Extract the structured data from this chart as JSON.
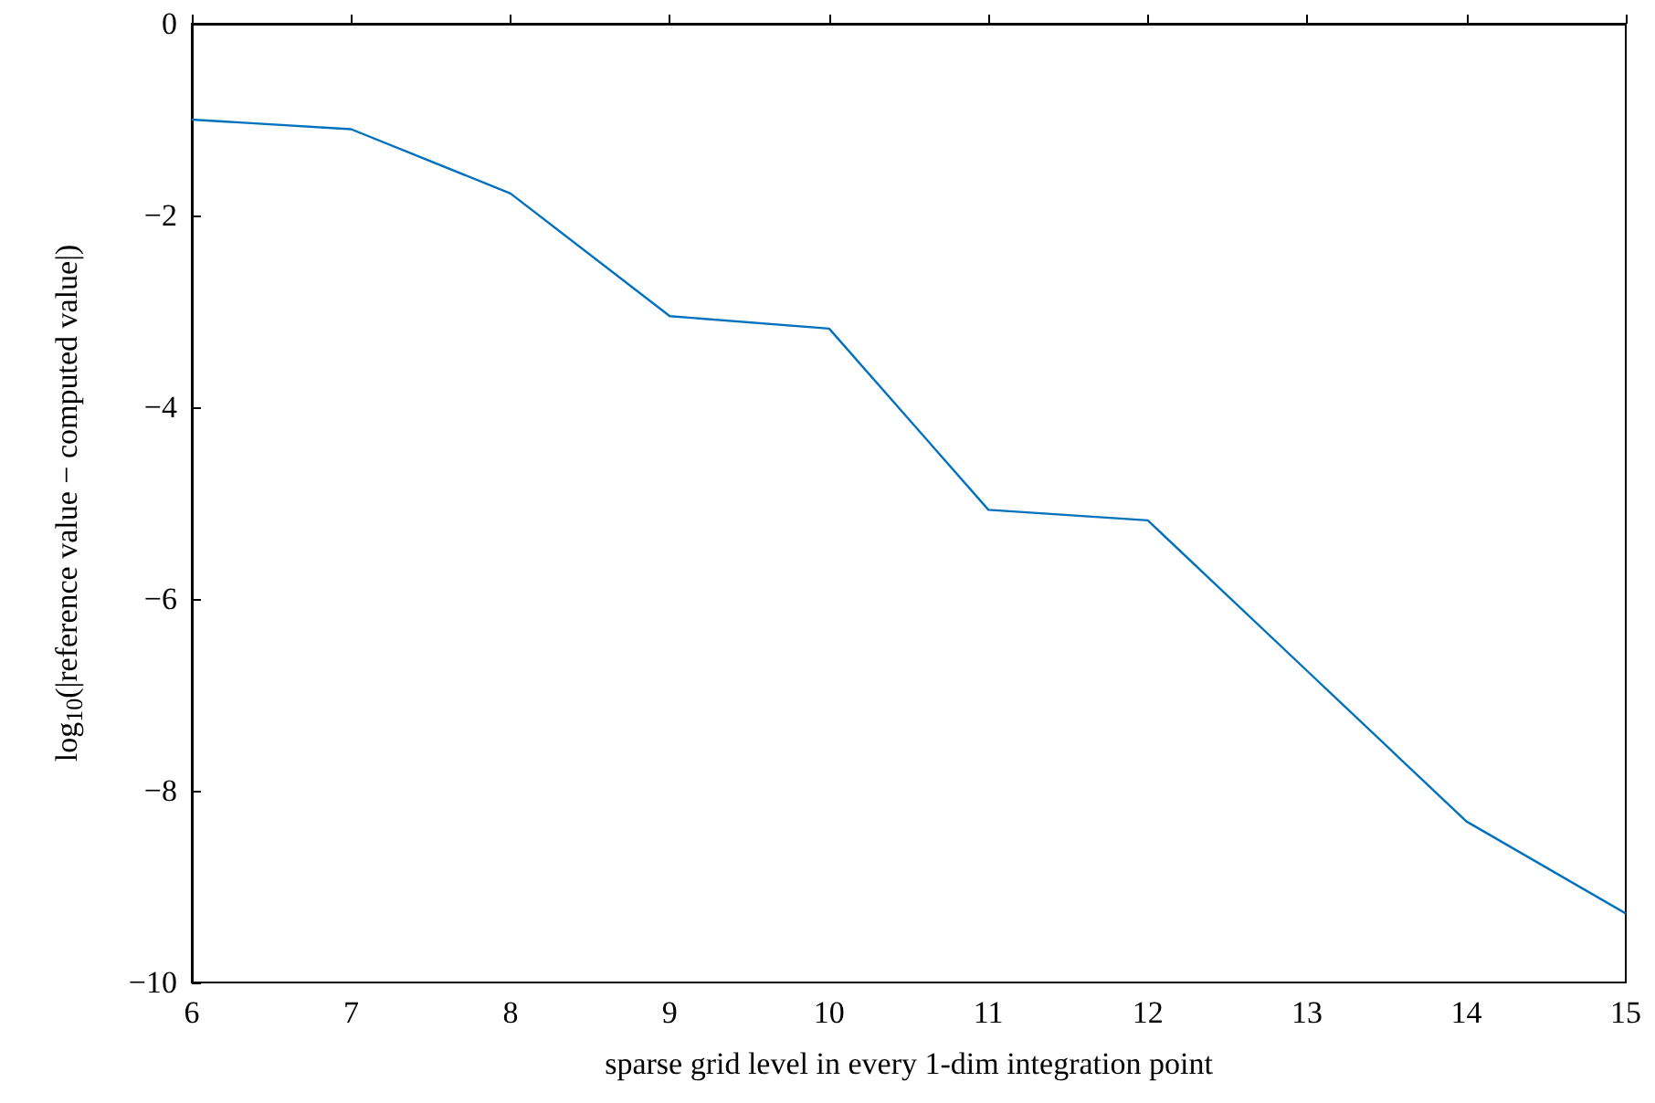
{
  "chart_data": {
    "type": "line",
    "xlabel": "sparse grid level in every 1-dim integration point",
    "ylabel": "log$_{10}$(|reference value − computed value|)",
    "x": [
      6,
      7,
      8,
      9,
      10,
      11,
      12,
      13,
      14,
      15
    ],
    "series": [
      {
        "color": "#0072bd",
        "values": [
          -1.0,
          -1.1,
          -1.77,
          -3.05,
          -3.18,
          -5.07,
          -5.18,
          -6.75,
          -8.32,
          -9.28
        ]
      }
    ],
    "xlim": [
      6,
      15
    ],
    "xticks": [
      6,
      7,
      8,
      9,
      10,
      11,
      12,
      13,
      14,
      15
    ],
    "ylim": [
      -10,
      0
    ],
    "yticks": [
      -10,
      -8,
      -6,
      -4,
      -2,
      0
    ],
    "grid": false,
    "marker": "none",
    "line_style": "solid"
  }
}
